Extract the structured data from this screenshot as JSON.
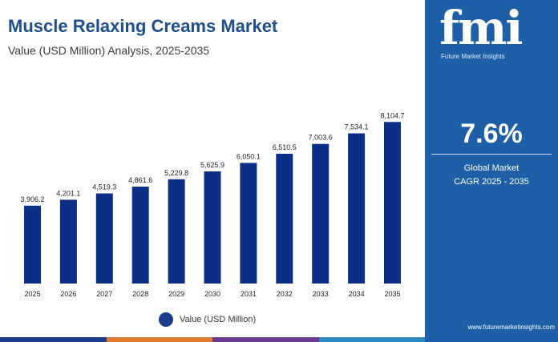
{
  "header": {
    "title": "Muscle Relaxing Creams Market",
    "subtitle": "Value (USD Million) Analysis, 2025-2035"
  },
  "sidebar": {
    "logo_text": "fmi",
    "logo_tagline": "Future Market Insights",
    "cagr_value": "7.6%",
    "cagr_label_line1": "Global Market",
    "cagr_label_line2": "CAGR 2025 - 2035",
    "website": "www.futuremarketinsights.com"
  },
  "legend": {
    "label": "Value (USD Million)"
  },
  "colors": {
    "bar": "#0b2f86",
    "title": "#1c4f8c",
    "sidebar": "#1e5fa8",
    "strip": [
      "#1c3d8c",
      "#e07a2e",
      "#6a3c8f",
      "#2e8bc0"
    ]
  },
  "chart_data": {
    "type": "bar",
    "categories": [
      "2025",
      "2026",
      "2027",
      "2028",
      "2029",
      "2030",
      "2031",
      "2032",
      "2033",
      "2034",
      "2035"
    ],
    "series": [
      {
        "name": "Value (USD Million)",
        "values": [
          3906.2,
          4201.1,
          4519.3,
          4861.6,
          5229.8,
          5625.9,
          6050.1,
          6510.5,
          7003.6,
          7534.1,
          8104.7
        ],
        "labels": [
          "3,906.2",
          "4,201.1",
          "4,519.3",
          "4,861.6",
          "5,229.8",
          "5,625.9",
          "6,050.1",
          "6,510.5",
          "7,003.6",
          "7,534.1",
          "8,104.7"
        ]
      }
    ],
    "ylim": [
      0,
      9000
    ],
    "grid": false,
    "legend_position": "bottom-center"
  }
}
